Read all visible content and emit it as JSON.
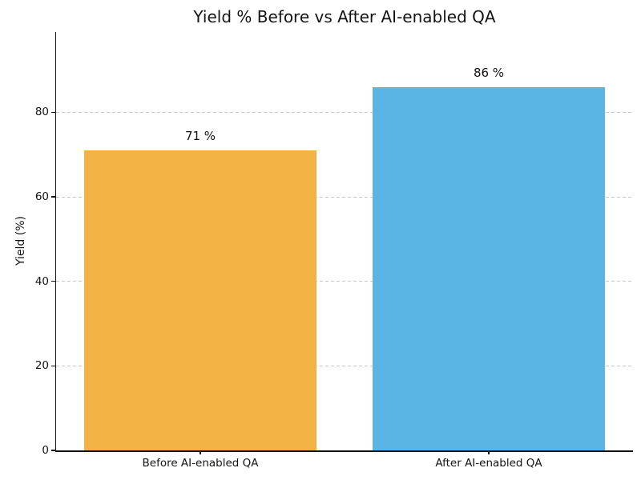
{
  "figure": {
    "background": "#ffffff",
    "text_color": "#141414"
  },
  "chart_data": {
    "type": "bar",
    "title": "Yield % Before vs After AI-enabled QA",
    "xlabel": "",
    "ylabel": "Yield (%)",
    "categories": [
      "Before AI-enabled QA",
      "After AI-enabled QA"
    ],
    "values": [
      71,
      86
    ],
    "value_labels": [
      "71 %",
      "86 %"
    ],
    "bar_colors": [
      "#F2B344",
      "#5AB4E4"
    ],
    "yticks": [
      0,
      20,
      40,
      60,
      80
    ],
    "ylim": [
      0,
      99
    ],
    "grid": {
      "axis": "y",
      "style": "dashed",
      "color": "#c9c9c9"
    },
    "legend": "none"
  }
}
